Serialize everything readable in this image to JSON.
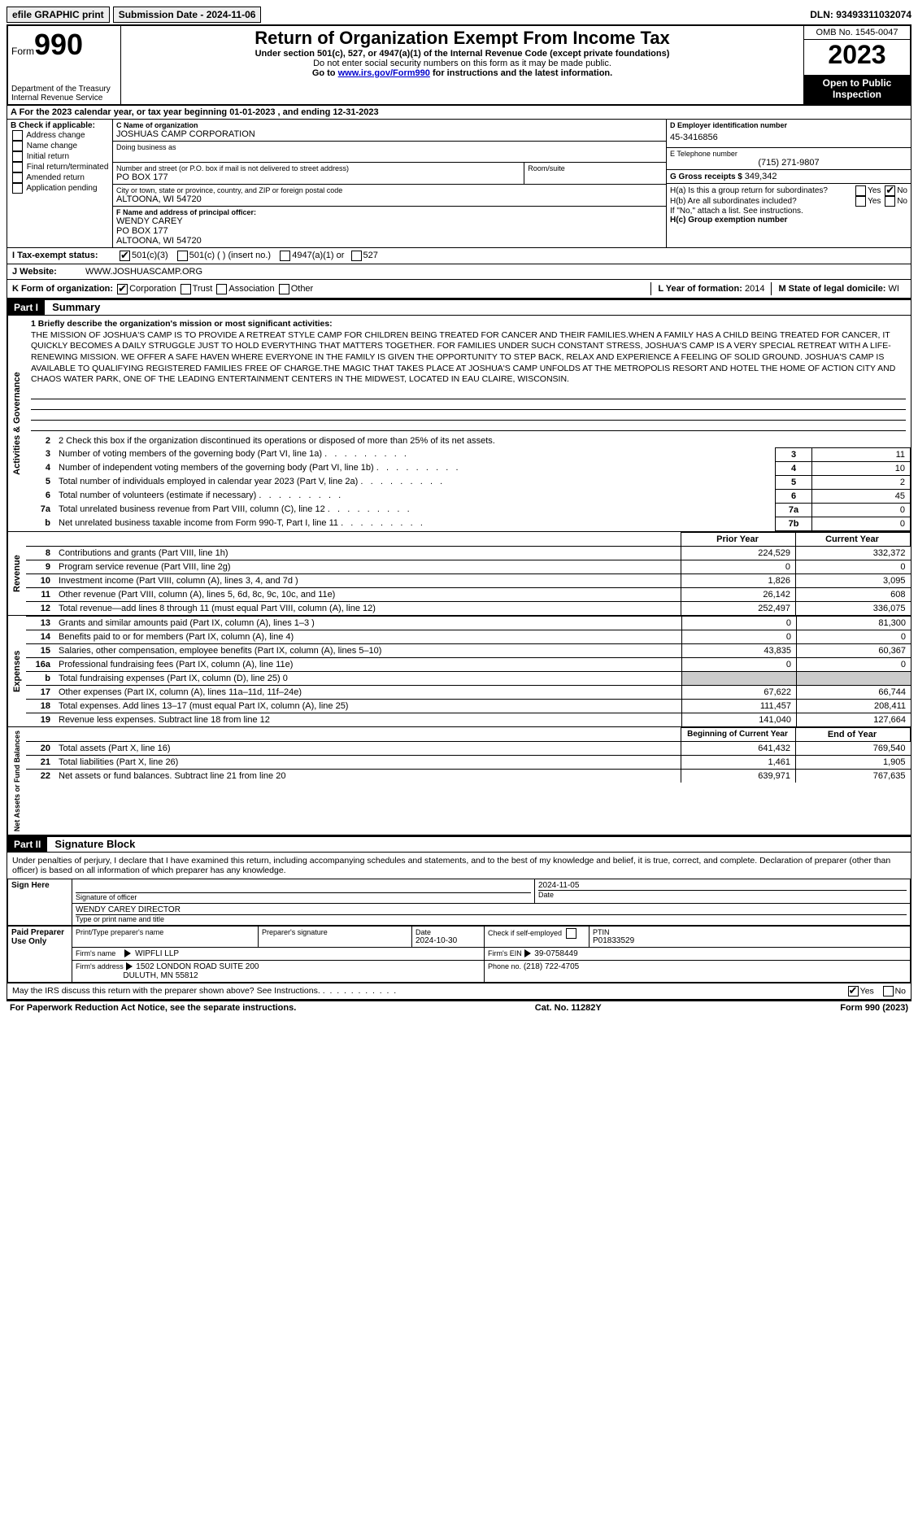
{
  "topbar": {
    "efile": "efile GRAPHIC print",
    "submission": "Submission Date - 2024-11-06",
    "dln": "DLN: 93493311032074"
  },
  "header": {
    "form": "Form",
    "form_num": "990",
    "dept1": "Department of the Treasury",
    "dept2": "Internal Revenue Service",
    "title": "Return of Organization Exempt From Income Tax",
    "sub1": "Under section 501(c), 527, or 4947(a)(1) of the Internal Revenue Code (except private foundations)",
    "sub2": "Do not enter social security numbers on this form as it may be made public.",
    "sub3_pre": "Go to ",
    "sub3_link": "www.irs.gov/Form990",
    "sub3_post": " for instructions and the latest information.",
    "omb": "OMB No. 1545-0047",
    "year": "2023",
    "open": "Open to Public Inspection"
  },
  "section_a": {
    "text": "A   For the 2023 calendar year, or tax year beginning 01-01-2023     , and ending 12-31-2023"
  },
  "col_b": {
    "header": "B Check if applicable:",
    "items": [
      "Address change",
      "Name change",
      "Initial return",
      "Final return/terminated",
      "Amended return",
      "Application pending"
    ]
  },
  "col_c": {
    "name_label": "C Name of organization",
    "name": "JOSHUAS CAMP CORPORATION",
    "dba_label": "Doing business as",
    "addr_label": "Number and street (or P.O. box if mail is not delivered to street address)",
    "room_label": "Room/suite",
    "addr": "PO BOX 177",
    "city_label": "City or town, state or province, country, and ZIP or foreign postal code",
    "city": "ALTOONA, WI  54720",
    "officer_label": "F Name and address of principal officer:",
    "officer_name": "WENDY CAREY",
    "officer_addr1": "PO BOX 177",
    "officer_addr2": "ALTOONA, WI  54720"
  },
  "col_d": {
    "ein_label": "D Employer identification number",
    "ein": "45-3416856",
    "phone_label": "E Telephone number",
    "phone": "(715) 271-9807",
    "gross_label": "G Gross receipts $",
    "gross": "349,342",
    "ha_label": "H(a)  Is this a group return for subordinates?",
    "hb_label": "H(b)  Are all subordinates included?",
    "hb_note": "If \"No,\" attach a list. See instructions.",
    "hc_label": "H(c)  Group exemption number",
    "yes": "Yes",
    "no": "No"
  },
  "row_i": {
    "label": "I   Tax-exempt status:",
    "opt1": "501(c)(3)",
    "opt2": "501(c) (  ) (insert no.)",
    "opt3": "4947(a)(1) or",
    "opt4": "527"
  },
  "row_j": {
    "label": "J   Website:",
    "val": "WWW.JOSHUASCAMP.ORG"
  },
  "row_k": {
    "label": "K Form of organization:",
    "opts": [
      "Corporation",
      "Trust",
      "Association",
      "Other"
    ],
    "l_label": "L Year of formation:",
    "l_val": "2014",
    "m_label": "M State of legal domicile:",
    "m_val": "WI"
  },
  "part1": {
    "header": "Part I",
    "title": "Summary",
    "side1": "Activities & Governance",
    "side2": "Revenue",
    "side3": "Expenses",
    "side4": "Net Assets or Fund Balances",
    "line1_label": "1  Briefly describe the organization's mission or most significant activities:",
    "mission": "THE MISSION OF JOSHUA'S CAMP IS TO PROVIDE A RETREAT STYLE CAMP FOR CHILDREN BEING TREATED FOR CANCER AND THEIR FAMILIES.WHEN A FAMILY HAS A CHILD BEING TREATED FOR CANCER, IT QUICKLY BECOMES A DAILY STRUGGLE JUST TO HOLD EVERYTHING THAT MATTERS TOGETHER. FOR FAMILIES UNDER SUCH CONSTANT STRESS, JOSHUA'S CAMP IS A VERY SPECIAL RETREAT WITH A LIFE-RENEWING MISSION. WE OFFER A SAFE HAVEN WHERE EVERYONE IN THE FAMILY IS GIVEN THE OPPORTUNITY TO STEP BACK, RELAX AND EXPERIENCE A FEELING OF SOLID GROUND. JOSHUA'S CAMP IS AVAILABLE TO QUALIFYING REGISTERED FAMILIES FREE OF CHARGE.THE MAGIC THAT TAKES PLACE AT JOSHUA'S CAMP UNFOLDS AT THE METROPOLIS RESORT AND HOTEL THE HOME OF ACTION CITY AND CHAOS WATER PARK, ONE OF THE LEADING ENTERTAINMENT CENTERS IN THE MIDWEST, LOCATED IN EAU CLAIRE, WISCONSIN.",
    "line2": "2   Check this box         if the organization discontinued its operations or disposed of more than 25% of its net assets.",
    "gov_rows": [
      {
        "n": "3",
        "t": "Number of voting members of the governing body (Part VI, line 1a)",
        "box": "3",
        "v": "11"
      },
      {
        "n": "4",
        "t": "Number of independent voting members of the governing body (Part VI, line 1b)",
        "box": "4",
        "v": "10"
      },
      {
        "n": "5",
        "t": "Total number of individuals employed in calendar year 2023 (Part V, line 2a)",
        "box": "5",
        "v": "2"
      },
      {
        "n": "6",
        "t": "Total number of volunteers (estimate if necessary)",
        "box": "6",
        "v": "45"
      },
      {
        "n": "7a",
        "t": "Total unrelated business revenue from Part VIII, column (C), line 12",
        "box": "7a",
        "v": "0"
      },
      {
        "n": "b",
        "t": "Net unrelated business taxable income from Form 990-T, Part I, line 11",
        "box": "7b",
        "v": "0"
      }
    ],
    "prior_hdr": "Prior Year",
    "curr_hdr": "Current Year",
    "rev_rows": [
      {
        "n": "8",
        "t": "Contributions and grants (Part VIII, line 1h)",
        "p": "224,529",
        "c": "332,372"
      },
      {
        "n": "9",
        "t": "Program service revenue (Part VIII, line 2g)",
        "p": "0",
        "c": "0"
      },
      {
        "n": "10",
        "t": "Investment income (Part VIII, column (A), lines 3, 4, and 7d )",
        "p": "1,826",
        "c": "3,095"
      },
      {
        "n": "11",
        "t": "Other revenue (Part VIII, column (A), lines 5, 6d, 8c, 9c, 10c, and 11e)",
        "p": "26,142",
        "c": "608"
      },
      {
        "n": "12",
        "t": "Total revenue—add lines 8 through 11 (must equal Part VIII, column (A), line 12)",
        "p": "252,497",
        "c": "336,075"
      }
    ],
    "exp_rows": [
      {
        "n": "13",
        "t": "Grants and similar amounts paid (Part IX, column (A), lines 1–3 )",
        "p": "0",
        "c": "81,300"
      },
      {
        "n": "14",
        "t": "Benefits paid to or for members (Part IX, column (A), line 4)",
        "p": "0",
        "c": "0"
      },
      {
        "n": "15",
        "t": "Salaries, other compensation, employee benefits (Part IX, column (A), lines 5–10)",
        "p": "43,835",
        "c": "60,367"
      },
      {
        "n": "16a",
        "t": "Professional fundraising fees (Part IX, column (A), line 11e)",
        "p": "0",
        "c": "0"
      },
      {
        "n": "b",
        "t": "Total fundraising expenses (Part IX, column (D), line 25) 0",
        "p": "shaded",
        "c": "shaded"
      },
      {
        "n": "17",
        "t": "Other expenses (Part IX, column (A), lines 11a–11d, 11f–24e)",
        "p": "67,622",
        "c": "66,744"
      },
      {
        "n": "18",
        "t": "Total expenses. Add lines 13–17 (must equal Part IX, column (A), line 25)",
        "p": "111,457",
        "c": "208,411"
      },
      {
        "n": "19",
        "t": "Revenue less expenses. Subtract line 18 from line 12",
        "p": "141,040",
        "c": "127,664"
      }
    ],
    "na_hdr1": "Beginning of Current Year",
    "na_hdr2": "End of Year",
    "na_rows": [
      {
        "n": "20",
        "t": "Total assets (Part X, line 16)",
        "p": "641,432",
        "c": "769,540"
      },
      {
        "n": "21",
        "t": "Total liabilities (Part X, line 26)",
        "p": "1,461",
        "c": "1,905"
      },
      {
        "n": "22",
        "t": "Net assets or fund balances. Subtract line 21 from line 20",
        "p": "639,971",
        "c": "767,635"
      }
    ]
  },
  "part2": {
    "header": "Part II",
    "title": "Signature Block",
    "declaration": "Under penalties of perjury, I declare that I have examined this return, including accompanying schedules and statements, and to the best of my knowledge and belief, it is true, correct, and complete. Declaration of preparer (other than officer) is based on all information of which preparer has any knowledge.",
    "sign_here": "Sign Here",
    "sig_date": "2024-11-05",
    "sig_label": "Signature of officer",
    "date_label": "Date",
    "officer": "WENDY CAREY  DIRECTOR",
    "type_label": "Type or print name and title",
    "paid": "Paid Preparer Use Only",
    "prep_name_label": "Print/Type preparer's name",
    "prep_sig_label": "Preparer's signature",
    "prep_date_label": "Date",
    "prep_date": "2024-10-30",
    "check_if": "Check         if self-employed",
    "ptin_label": "PTIN",
    "ptin": "P01833529",
    "firm_name_label": "Firm's name",
    "firm_name": "WIPFLI LLP",
    "firm_ein_label": "Firm's EIN",
    "firm_ein": "39-0758449",
    "firm_addr_label": "Firm's address",
    "firm_addr1": "1502 LONDON ROAD SUITE 200",
    "firm_addr2": "DULUTH, MN  55812",
    "phone_label": "Phone no.",
    "phone": "(218) 722-4705",
    "discuss": "May the IRS discuss this return with the preparer shown above? See Instructions.",
    "yes": "Yes",
    "no": "No"
  },
  "footer": {
    "left": "For Paperwork Reduction Act Notice, see the separate instructions.",
    "mid": "Cat. No. 11282Y",
    "right": "Form 990 (2023)"
  }
}
